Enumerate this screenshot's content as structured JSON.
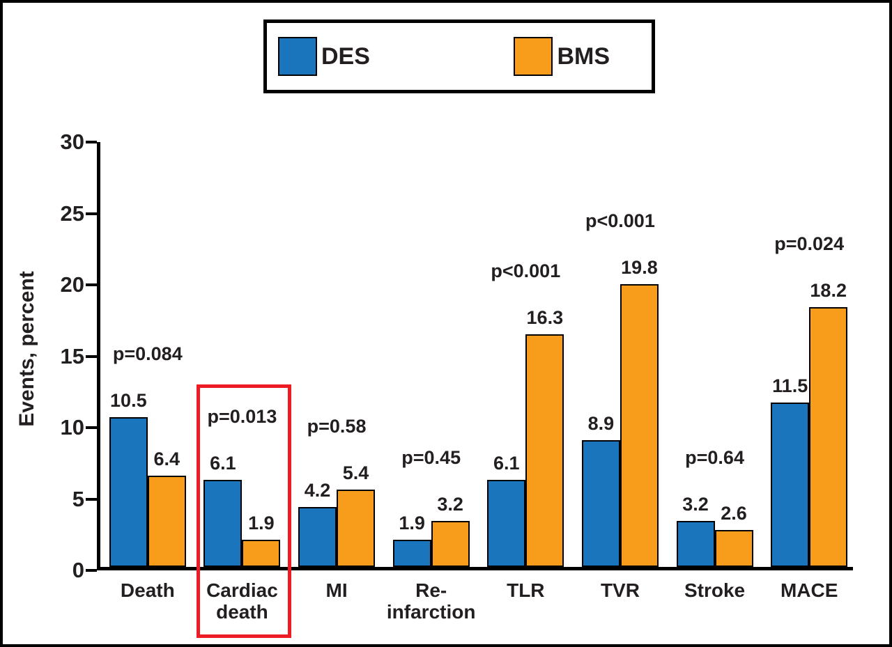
{
  "chart_data": {
    "type": "bar",
    "title": "",
    "ylabel": "Events, percent",
    "ylim": [
      0,
      30
    ],
    "yticks": [
      "0",
      "5",
      "10",
      "15",
      "20",
      "25",
      "30"
    ],
    "grid": false,
    "legend_position": "top",
    "categories": [
      [
        "Death"
      ],
      [
        "Cardiac",
        "death"
      ],
      [
        "MI"
      ],
      [
        "Re-",
        "infarction"
      ],
      [
        "TLR"
      ],
      [
        "TVR"
      ],
      [
        "Stroke"
      ],
      [
        "MACE"
      ]
    ],
    "series": [
      {
        "name": "DES",
        "color": "#1b75bc",
        "values": [
          10.5,
          6.1,
          4.2,
          1.9,
          6.1,
          8.9,
          3.2,
          11.5
        ]
      },
      {
        "name": "BMS",
        "color": "#f89c1c",
        "values": [
          6.4,
          1.9,
          5.4,
          3.2,
          16.3,
          19.8,
          2.6,
          18.2
        ]
      }
    ],
    "p_values": [
      "p=0.084",
      "p=0.013",
      "p=0.58",
      "p=0.45",
      "p<0.001",
      "p<0.001",
      "p=0.64",
      "p=0.024"
    ],
    "highlight": {
      "category": "Cardiac death",
      "category_index": 1,
      "color": "#ed1c24"
    }
  }
}
